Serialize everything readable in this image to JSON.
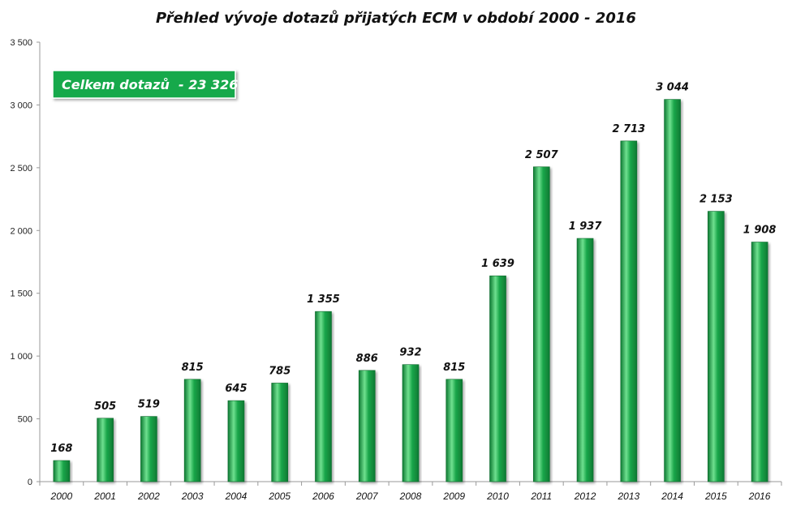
{
  "chart_data": {
    "type": "bar",
    "title": "Přehled vývoje dotazů přijatých ECM v období 2000 - 2016",
    "annotation": "Celkem dotazů  - 23 326",
    "categories": [
      "2000",
      "2001",
      "2002",
      "2003",
      "2004",
      "2005",
      "2006",
      "2007",
      "2008",
      "2009",
      "2010",
      "2011",
      "2012",
      "2013",
      "2014",
      "2015",
      "2016"
    ],
    "values": [
      168,
      505,
      519,
      815,
      645,
      785,
      1355,
      886,
      932,
      815,
      1639,
      2507,
      1937,
      2713,
      3044,
      2153,
      1908
    ],
    "value_labels": [
      "168",
      "505",
      "519",
      "815",
      "645",
      "785",
      "1 355",
      "886",
      "932",
      "815",
      "1 639",
      "2 507",
      "1 937",
      "2 713",
      "3 044",
      "2 153",
      "1 908"
    ],
    "ylim": [
      0,
      3500
    ],
    "yticks": [
      0,
      500,
      1000,
      1500,
      2000,
      2500,
      3000,
      3500
    ],
    "ytick_labels": [
      "0",
      "500",
      "1 000",
      "1 500",
      "2 000",
      "2 500",
      "3 000",
      "3 500"
    ],
    "xlabel": "",
    "ylabel": "",
    "grid": false,
    "legend": "none",
    "colors": {
      "bar": "#1aa64a",
      "bar_light": "#6fe08f",
      "bar_dark": "#0e7a33",
      "annotation_bg": "#19a94b"
    }
  }
}
